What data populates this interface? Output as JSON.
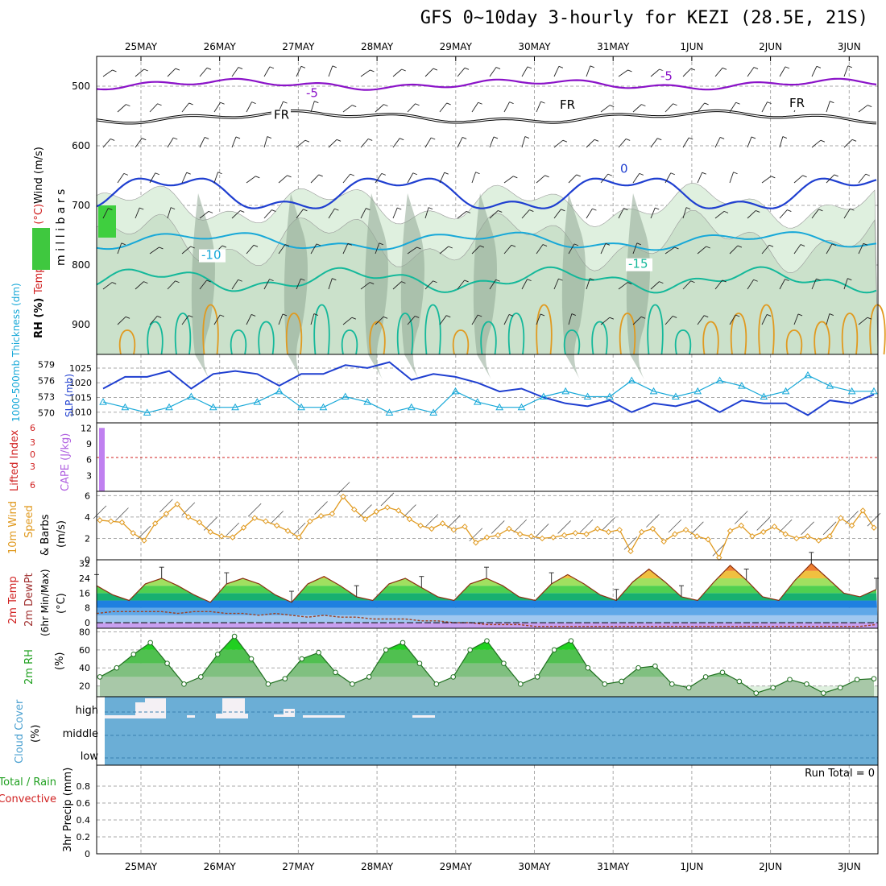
{
  "title": "GFS 0~10day 3-hourly for KEZI (28.5E, 21S)",
  "colors": {
    "purple": "#8a12c8",
    "black": "#000000",
    "blue": "#1f3fd0",
    "cyan": "#17a8d8",
    "teal": "#14b89a",
    "orange": "#e09a20",
    "green_fill": "#dff0df",
    "cloud": "#6baed6",
    "grid": "#aaaaaa"
  },
  "chart_data": [
    {
      "panel": "upper-air",
      "type": "contour",
      "ylabel_left": [
        "RH (%)",
        "Temperature (°C)",
        "Wind (m/s)"
      ],
      "ylabel_right": "m i l l i b a r s",
      "y_ticks": [
        500,
        600,
        700,
        800,
        900
      ],
      "ylim": [
        450,
        950
      ],
      "x_ticks": [
        "25MAY",
        "26MAY",
        "27MAY",
        "28MAY",
        "29MAY",
        "30MAY",
        "31MAY",
        "1JUN",
        "2JUN",
        "3JUN"
      ],
      "isotherm_labels": [
        "-5",
        "-5",
        "FR",
        "FR",
        "FR",
        "0",
        "-10",
        "-15"
      ]
    },
    {
      "panel": "thickness-slp",
      "type": "line",
      "ylabel_left": [
        "1000-500mb",
        "Thickness (dm)"
      ],
      "ylabel_right": "SLP (mb)",
      "left_ticks": [
        570,
        573,
        576,
        579
      ],
      "right_ticks": [
        1010,
        1015,
        1020,
        1025
      ],
      "series": [
        {
          "name": "SLP (mb)",
          "values": [
            1018,
            1022,
            1022,
            1024,
            1018,
            1023,
            1024,
            1023,
            1019,
            1023,
            1023,
            1026,
            1025,
            1027,
            1021,
            1023,
            1022,
            1020,
            1017,
            1018,
            1015,
            1013,
            1012,
            1014,
            1010,
            1013,
            1012,
            1014,
            1010,
            1014,
            1013,
            1013,
            1009,
            1014,
            1013,
            1016
          ]
        },
        {
          "name": "Thickness (dm)",
          "values": [
            572,
            571,
            570,
            571,
            573,
            571,
            571,
            572,
            574,
            571,
            571,
            573,
            572,
            570,
            571,
            570,
            574,
            572,
            571,
            571,
            573,
            574,
            573,
            573,
            576,
            574,
            573,
            574,
            576,
            575,
            573,
            574,
            577,
            575,
            574,
            574
          ]
        }
      ]
    },
    {
      "panel": "cape-li",
      "type": "bar",
      "ylabel_left": "Lifted Index",
      "ylabel_right": "CAPE (J/kg)",
      "left_ticks": [
        6,
        3,
        0,
        3,
        6
      ],
      "right_ticks": [
        3,
        6,
        9,
        12
      ],
      "bars": [
        12
      ]
    },
    {
      "panel": "10m-wind",
      "type": "line",
      "ylabel": [
        "10m Wind",
        "Speed",
        "& Barbs",
        "(m/s)"
      ],
      "y_ticks": [
        0,
        2,
        4,
        6
      ],
      "ylim": [
        0,
        6.4
      ],
      "values": [
        3.7,
        3.6,
        3.5,
        2.5,
        1.8,
        3.4,
        4.3,
        5.2,
        4.0,
        3.5,
        2.6,
        2.2,
        2.1,
        3.0,
        3.9,
        3.6,
        3.2,
        2.7,
        2.1,
        3.6,
        4.1,
        4.3,
        5.9,
        4.7,
        3.8,
        4.5,
        4.9,
        4.6,
        3.8,
        3.2,
        2.9,
        3.4,
        2.8,
        3.1,
        1.6,
        2.1,
        2.3,
        2.9,
        2.4,
        2.2,
        2.0,
        2.1,
        2.3,
        2.5,
        2.4,
        2.9,
        2.6,
        2.8,
        0.8,
        2.6,
        2.9,
        1.7,
        2.4,
        2.8,
        2.2,
        1.9,
        0.2,
        2.7,
        3.2,
        2.2,
        2.6,
        3.1,
        2.4,
        2.0,
        2.2,
        1.8,
        2.2,
        3.9,
        3.2,
        4.6,
        3.0
      ]
    },
    {
      "panel": "2m-temp",
      "type": "area",
      "ylabel": [
        "2m Temp",
        "2m DewPt",
        "(6hr Min/Max)",
        "(°C)"
      ],
      "y_ticks": [
        0,
        8,
        16,
        24,
        32
      ],
      "ylim": [
        -3,
        34
      ],
      "temp_values": [
        20,
        15,
        12,
        21,
        24,
        20,
        15,
        11,
        21,
        24,
        21,
        15,
        11,
        21,
        25,
        20,
        14,
        12,
        21,
        24,
        19,
        14,
        12,
        21,
        24,
        20,
        14,
        12,
        21,
        26,
        21,
        15,
        12,
        22,
        29,
        22,
        14,
        12,
        22,
        31,
        23,
        14,
        12,
        23,
        32,
        24,
        16,
        14,
        18
      ],
      "dewpoint_values": [
        5,
        6,
        6,
        6,
        6,
        5,
        6,
        6,
        5,
        5,
        4,
        5,
        4,
        3,
        4,
        3,
        3,
        2,
        2,
        2,
        1,
        1,
        0,
        0,
        -1,
        -1,
        -1,
        -2,
        -2,
        -2,
        -2,
        -2,
        -2,
        -2,
        -2,
        -2,
        -2,
        -2,
        -2,
        -2,
        -2,
        -2,
        -2,
        -2,
        -2,
        -2,
        -2,
        -2,
        -1
      ]
    },
    {
      "panel": "2m-rh",
      "type": "area",
      "ylabel": [
        "2m RH",
        "(%)"
      ],
      "y_ticks": [
        20,
        40,
        60,
        80
      ],
      "ylim": [
        8,
        84
      ],
      "values": [
        30,
        40,
        55,
        68,
        45,
        22,
        30,
        55,
        75,
        50,
        22,
        28,
        50,
        57,
        35,
        22,
        30,
        60,
        68,
        45,
        22,
        30,
        60,
        70,
        45,
        22,
        30,
        60,
        70,
        40,
        22,
        25,
        40,
        42,
        22,
        18,
        30,
        35,
        25,
        12,
        18,
        27,
        22,
        12,
        18,
        27,
        28
      ]
    },
    {
      "panel": "cloud-cover",
      "type": "area",
      "ylabel": [
        "Cloud Cover",
        "(%)"
      ],
      "levels": [
        "high",
        "middle",
        "low"
      ]
    },
    {
      "panel": "3hr-precip",
      "type": "bar",
      "ylabel_left": [
        "Total / Rain",
        "Convective"
      ],
      "ylabel": "3hr Precip (mm)",
      "y_ticks": [
        0,
        0.2,
        0.4,
        0.6,
        0.8
      ],
      "ylim": [
        0,
        1
      ],
      "run_total": "Run Total = 0",
      "x_ticks": [
        "25MAY",
        "26MAY",
        "27MAY",
        "28MAY",
        "29MAY",
        "30MAY",
        "31MAY",
        "1JUN",
        "2JUN",
        "3JUN"
      ]
    }
  ]
}
